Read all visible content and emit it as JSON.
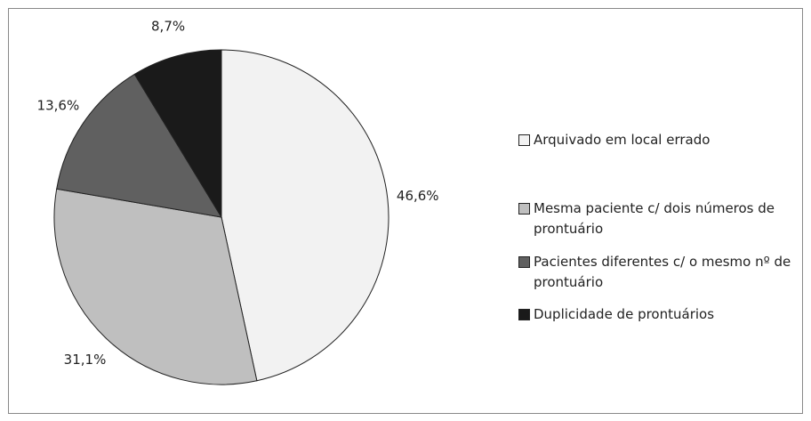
{
  "chart_data": {
    "type": "pie",
    "categories": [
      "Arquivado em local errado",
      "Mesma paciente c/ dois números de prontuário",
      "Pacientes diferentes c/ o mesmo nº de prontuário",
      "Duplicidade de prontuários"
    ],
    "values": [
      46.6,
      31.1,
      13.6,
      8.7
    ],
    "value_labels": [
      "46,6%",
      "31,1%",
      "13,6%",
      "8,7%"
    ],
    "colors": [
      "#f2f2f2",
      "#bfbfbf",
      "#606060",
      "#1a1a1a"
    ],
    "legend": "right"
  }
}
